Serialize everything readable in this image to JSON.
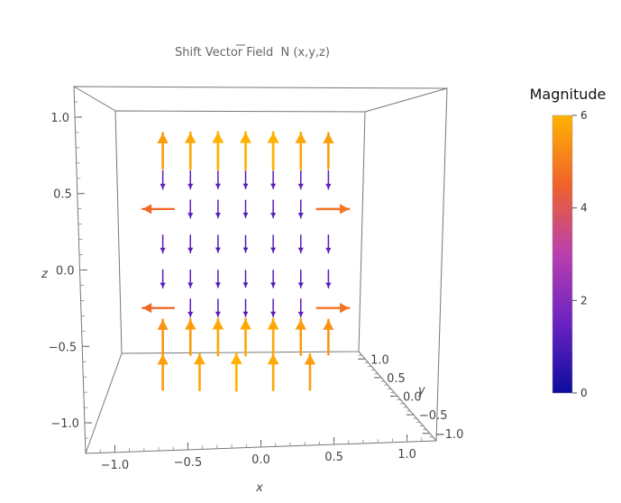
{
  "chart_data": {
    "type": "vector-field-3d",
    "title": "Shift Vector Field",
    "title_symbol": "N",
    "title_args": "(x,y,z)",
    "xlabel": "x",
    "ylabel": "y",
    "zlabel": "z",
    "xlim": [
      -1.2,
      1.2
    ],
    "ylim": [
      -1.2,
      1.2
    ],
    "zlim": [
      -1.2,
      1.2
    ],
    "x_ticks": [
      "−1.0",
      "−0.5",
      "0.0",
      "0.5",
      "1.0"
    ],
    "y_ticks": [
      "1.0",
      "0.5",
      "0.0",
      "−0.5",
      "−1.0"
    ],
    "z_ticks": [
      "1.0",
      "0.5",
      "0.0",
      "−0.5",
      "−1.0"
    ],
    "x_tick_values": [
      -1.0,
      -0.5,
      0.0,
      0.5,
      1.0
    ],
    "y_tick_values": [
      1.0,
      0.5,
      0.0,
      -0.5,
      -1.0
    ],
    "z_tick_values": [
      1.0,
      0.5,
      0.0,
      -0.5,
      -1.0
    ],
    "grid": false,
    "colorbar": {
      "label": "Magnitude",
      "min": 0,
      "max": 6,
      "ticks": [
        "0",
        "2",
        "4",
        "6"
      ],
      "tick_values": [
        0,
        2,
        4,
        6
      ],
      "colors": [
        "#0c0c9e",
        "#6a22c2",
        "#b93fae",
        "#f0622c",
        "#ffb300"
      ]
    },
    "field_description": "arrows point up with large magnitude near top/bottom shells, downward with small magnitude in the interior, horizontal outward near the sides",
    "arrows": [
      {
        "x": -0.9,
        "z": 0.95,
        "dz": 1,
        "mag": 5.6
      },
      {
        "x": -0.6,
        "z": 0.95,
        "dz": 1,
        "mag": 5.8
      },
      {
        "x": -0.3,
        "z": 0.95,
        "dz": 1,
        "mag": 6.0
      },
      {
        "x": 0.0,
        "z": 0.95,
        "dz": 1,
        "mag": 6.0
      },
      {
        "x": 0.3,
        "z": 0.95,
        "dz": 1,
        "mag": 6.0
      },
      {
        "x": 0.6,
        "z": 0.95,
        "dz": 1,
        "mag": 5.8
      },
      {
        "x": 0.9,
        "z": 0.95,
        "dz": 1,
        "mag": 5.6
      },
      {
        "x": -0.9,
        "z": 0.7,
        "dz": -1,
        "mag": 1.4
      },
      {
        "x": -0.6,
        "z": 0.7,
        "dz": -1,
        "mag": 1.3
      },
      {
        "x": -0.3,
        "z": 0.7,
        "dz": -1,
        "mag": 1.2
      },
      {
        "x": 0.0,
        "z": 0.7,
        "dz": -1,
        "mag": 1.2
      },
      {
        "x": 0.3,
        "z": 0.7,
        "dz": -1,
        "mag": 1.2
      },
      {
        "x": 0.6,
        "z": 0.7,
        "dz": -1,
        "mag": 1.3
      },
      {
        "x": 0.9,
        "z": 0.7,
        "dz": -1,
        "mag": 1.4
      },
      {
        "x": -0.95,
        "z": 0.45,
        "dz": 0,
        "mag": 4.6
      },
      {
        "x": -0.6,
        "z": 0.45,
        "dz": -1,
        "mag": 1.3
      },
      {
        "x": -0.3,
        "z": 0.45,
        "dz": -1,
        "mag": 1.2
      },
      {
        "x": 0.0,
        "z": 0.45,
        "dz": -1,
        "mag": 1.1
      },
      {
        "x": 0.3,
        "z": 0.45,
        "dz": -1,
        "mag": 1.2
      },
      {
        "x": 0.6,
        "z": 0.45,
        "dz": -1,
        "mag": 1.3
      },
      {
        "x": 0.95,
        "z": 0.45,
        "dz": 0,
        "mag": 4.8
      },
      {
        "x": -0.9,
        "z": 0.15,
        "dz": -1,
        "mag": 1.3
      },
      {
        "x": -0.6,
        "z": 0.15,
        "dz": -1,
        "mag": 1.2
      },
      {
        "x": -0.3,
        "z": 0.15,
        "dz": -1,
        "mag": 1.1
      },
      {
        "x": 0.0,
        "z": 0.15,
        "dz": -1,
        "mag": 1.0
      },
      {
        "x": 0.3,
        "z": 0.15,
        "dz": -1,
        "mag": 1.1
      },
      {
        "x": 0.6,
        "z": 0.15,
        "dz": -1,
        "mag": 1.2
      },
      {
        "x": 0.9,
        "z": 0.15,
        "dz": -1,
        "mag": 1.3
      },
      {
        "x": -0.9,
        "z": -0.15,
        "dz": -1,
        "mag": 1.3
      },
      {
        "x": -0.6,
        "z": -0.15,
        "dz": -1,
        "mag": 1.2
      },
      {
        "x": -0.3,
        "z": -0.15,
        "dz": -1,
        "mag": 1.1
      },
      {
        "x": 0.0,
        "z": -0.15,
        "dz": -1,
        "mag": 1.0
      },
      {
        "x": 0.3,
        "z": -0.15,
        "dz": -1,
        "mag": 1.1
      },
      {
        "x": 0.6,
        "z": -0.15,
        "dz": -1,
        "mag": 1.2
      },
      {
        "x": 0.9,
        "z": -0.15,
        "dz": -1,
        "mag": 1.3
      },
      {
        "x": -0.95,
        "z": -0.4,
        "dz": 0,
        "mag": 4.6
      },
      {
        "x": -0.6,
        "z": -0.4,
        "dz": -1,
        "mag": 1.3
      },
      {
        "x": -0.3,
        "z": -0.4,
        "dz": -1,
        "mag": 1.2
      },
      {
        "x": 0.0,
        "z": -0.4,
        "dz": -1,
        "mag": 1.1
      },
      {
        "x": 0.3,
        "z": -0.4,
        "dz": -1,
        "mag": 1.2
      },
      {
        "x": 0.6,
        "z": -0.4,
        "dz": -1,
        "mag": 1.3
      },
      {
        "x": 0.95,
        "z": -0.4,
        "dz": 0,
        "mag": 4.8
      },
      {
        "x": -0.9,
        "z": -0.65,
        "dz": 1,
        "mag": 5.4
      },
      {
        "x": -0.6,
        "z": -0.65,
        "dz": 1,
        "mag": 5.6
      },
      {
        "x": -0.3,
        "z": -0.65,
        "dz": 1,
        "mag": 5.8
      },
      {
        "x": 0.0,
        "z": -0.65,
        "dz": 1,
        "mag": 5.8
      },
      {
        "x": 0.3,
        "z": -0.65,
        "dz": 1,
        "mag": 5.8
      },
      {
        "x": 0.6,
        "z": -0.65,
        "dz": 1,
        "mag": 5.6
      },
      {
        "x": 0.9,
        "z": -0.65,
        "dz": 1,
        "mag": 5.4
      },
      {
        "x": -0.9,
        "z": -0.95,
        "dz": 1,
        "mag": 5.6
      },
      {
        "x": -0.5,
        "z": -0.95,
        "dz": 1,
        "mag": 5.8
      },
      {
        "x": -0.1,
        "z": -0.95,
        "dz": 1,
        "mag": 6.0
      },
      {
        "x": 0.3,
        "z": -0.95,
        "dz": 1,
        "mag": 5.8
      },
      {
        "x": 0.7,
        "z": -0.95,
        "dz": 1,
        "mag": 5.6
      }
    ]
  }
}
